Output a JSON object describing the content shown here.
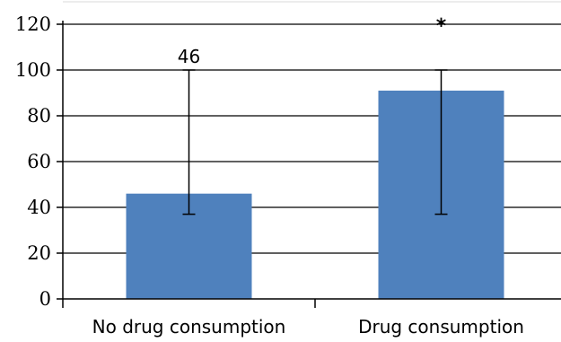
{
  "chart_data": {
    "type": "bar",
    "categories": [
      "No drug consumption",
      "Drug consumption"
    ],
    "values": [
      46,
      91
    ],
    "error_bars": [
      {
        "low": 37,
        "high": 100
      },
      {
        "low": 37,
        "high": 100
      }
    ],
    "data_labels": [
      "46",
      ""
    ],
    "annotations": [
      "",
      "*"
    ],
    "yticks": [
      "0",
      "20",
      "40",
      "60",
      "80",
      "100",
      "120"
    ],
    "ylim": [
      0,
      120
    ],
    "ytick_step": 20,
    "grid": true,
    "bar_color": "#4f81bd",
    "title": "",
    "xlabel": "",
    "ylabel": ""
  }
}
